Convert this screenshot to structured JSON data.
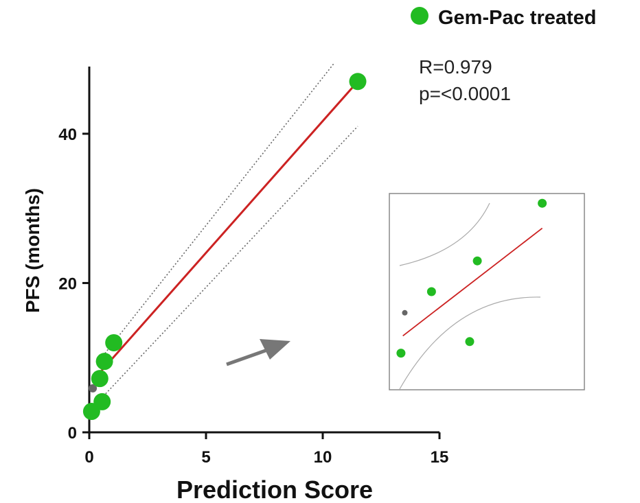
{
  "chart_data": [
    {
      "type": "scatter",
      "xlabel": "Prediction Score",
      "ylabel": "PFS (months)",
      "xlim": [
        0,
        15
      ],
      "ylim": [
        0,
        49
      ],
      "xticks": [
        "0",
        "5",
        "10",
        "15"
      ],
      "yticks": [
        "0",
        "20",
        "40"
      ],
      "grid": false,
      "legend": {
        "position": "top-right",
        "entries": [
          {
            "label": "Gem-Pac treated",
            "color": "#22bb22"
          }
        ]
      },
      "annotations": [
        "R=0.979",
        "p=<0.0001"
      ],
      "series": [
        {
          "name": "Gem-Pac treated",
          "color": "#22bb22",
          "points": [
            {
              "x": 0.1,
              "y": 2.8
            },
            {
              "x": 0.55,
              "y": 4.1
            },
            {
              "x": 0.45,
              "y": 7.2
            },
            {
              "x": 0.65,
              "y": 9.5
            },
            {
              "x": 1.05,
              "y": 12.0
            },
            {
              "x": 11.5,
              "y": 47.0
            }
          ]
        }
      ],
      "other_points": [
        {
          "x": 0.15,
          "y": 5.9,
          "color": "#666666"
        }
      ],
      "fit_line": {
        "color": "#cc2222",
        "from": [
          0.2,
          7.1
        ],
        "to": [
          11.5,
          47.0
        ]
      },
      "confidence_bands": {
        "upper": [
          [
            0.4,
            9.5
          ],
          [
            10.5,
            49.5
          ]
        ],
        "lower": [
          [
            0.5,
            4.5
          ],
          [
            11.5,
            41.0
          ]
        ]
      }
    },
    {
      "type": "scatter",
      "title": "",
      "xlim": [
        0,
        10
      ],
      "ylim": [
        0,
        10
      ],
      "grid": false,
      "series": [
        {
          "name": "Gem-Pac treated",
          "color": "#22bb22",
          "points": [
            {
              "x": 0.5,
              "y": 1.8
            },
            {
              "x": 2.1,
              "y": 5.0
            },
            {
              "x": 4.1,
              "y": 2.4
            },
            {
              "x": 4.5,
              "y": 6.6
            },
            {
              "x": 7.9,
              "y": 9.6
            }
          ]
        }
      ],
      "other_points": [
        {
          "x": 0.7,
          "y": 3.9,
          "color": "#666666"
        }
      ],
      "fit_line": {
        "color": "#cc2222",
        "from": [
          0.6,
          2.7
        ],
        "to": [
          7.9,
          8.3
        ]
      }
    }
  ]
}
